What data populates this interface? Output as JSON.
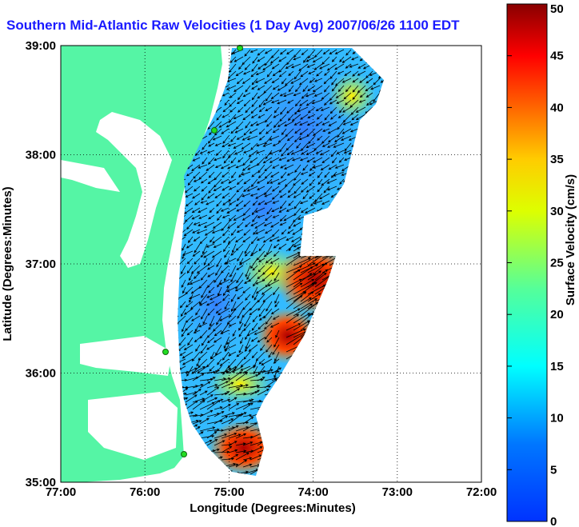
{
  "title": "Southern Mid-Atlantic Raw Velocities (1 Day Avg) 2007/06/26 1100 EDT",
  "map": {
    "xlabel": "Longitude (Degrees:Minutes)",
    "ylabel": "Latitude (Degrees:Minutes)",
    "x_ticks": [
      "77:00",
      "76:00",
      "75:00",
      "74:00",
      "73:00",
      "72:00"
    ],
    "y_ticks": [
      "39:00",
      "38:00",
      "37:00",
      "36:00",
      "35:00"
    ],
    "lon_range": [
      -77,
      -72
    ],
    "lat_range": [
      35,
      39
    ],
    "grid": "dotted"
  },
  "colorbar": {
    "label": "Surface Velocity (cm/s)",
    "ticks": [
      "50",
      "45",
      "40",
      "35",
      "30",
      "25",
      "20",
      "15",
      "10",
      "5",
      "0"
    ],
    "range": [
      0,
      50
    ],
    "colormap": "jet"
  },
  "colors": {
    "title": "#1a1aff",
    "land": "#55f5a5",
    "water": "#ffffff",
    "arrows": "#000000",
    "stations": "#22dd22"
  }
}
